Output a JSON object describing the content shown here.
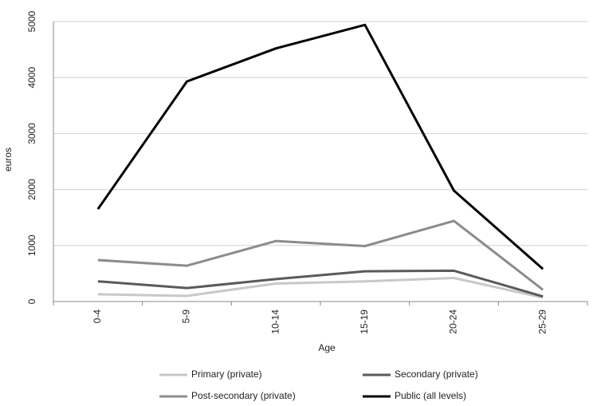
{
  "chart_data": {
    "type": "line",
    "x_label": "Age",
    "y_label": "euros",
    "categories": [
      "0-4",
      "5-9",
      "10-14",
      "15-19",
      "20-24",
      "25-29"
    ],
    "series": [
      {
        "name": "Primary (private)",
        "color": "#c8c8c8",
        "values": [
          130,
          100,
          320,
          360,
          420,
          70
        ]
      },
      {
        "name": "Secondary (private)",
        "color": "#5a5a5a",
        "values": [
          360,
          240,
          400,
          540,
          550,
          90
        ]
      },
      {
        "name": "Post-secondary (private)",
        "color": "#8c8c8c",
        "values": [
          740,
          640,
          1080,
          990,
          1440,
          210
        ]
      },
      {
        "name": "Public (all levels)",
        "color": "#000000",
        "values": [
          1650,
          3930,
          4520,
          4940,
          1980,
          580
        ]
      }
    ],
    "ylim": [
      0,
      5000
    ],
    "yticks": [
      0,
      1000,
      2000,
      3000,
      4000,
      5000
    ],
    "grid": true,
    "legend": "bottom"
  }
}
